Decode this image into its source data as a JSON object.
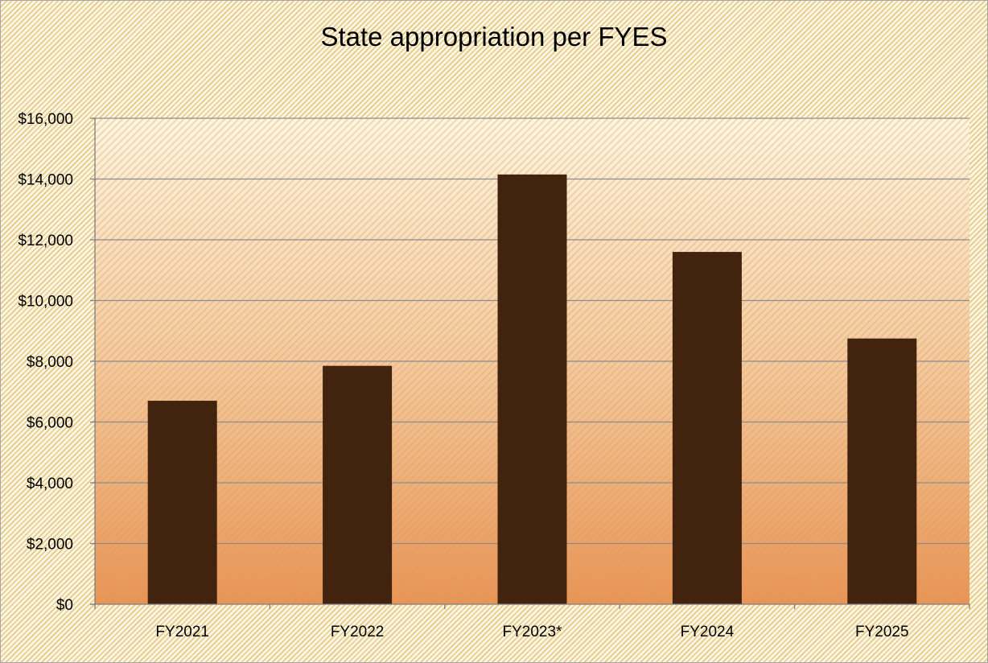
{
  "colors": {
    "bar": "#41230e",
    "plot_gradient_top": "#fdf5e6",
    "plot_gradient_bottom": "#e9935a",
    "gridline": "#8c8c8c",
    "background_hatch": "#d6a232"
  },
  "chart_data": {
    "type": "bar",
    "title": "State appropriation per FYES",
    "xlabel": "",
    "ylabel": "",
    "categories": [
      "FY2021",
      "FY2022",
      "FY2023*",
      "FY2024",
      "FY2025"
    ],
    "values": [
      6700,
      7850,
      14150,
      11600,
      8750
    ],
    "ylim": [
      0,
      16000
    ],
    "yticks": [
      0,
      2000,
      4000,
      6000,
      8000,
      10000,
      12000,
      14000,
      16000
    ],
    "ytick_labels": [
      "$0",
      "$2,000",
      "$4,000",
      "$6,000",
      "$8,000",
      "$10,000",
      "$12,000",
      "$14,000",
      "$16,000"
    ],
    "grid": true,
    "legend": "none"
  }
}
